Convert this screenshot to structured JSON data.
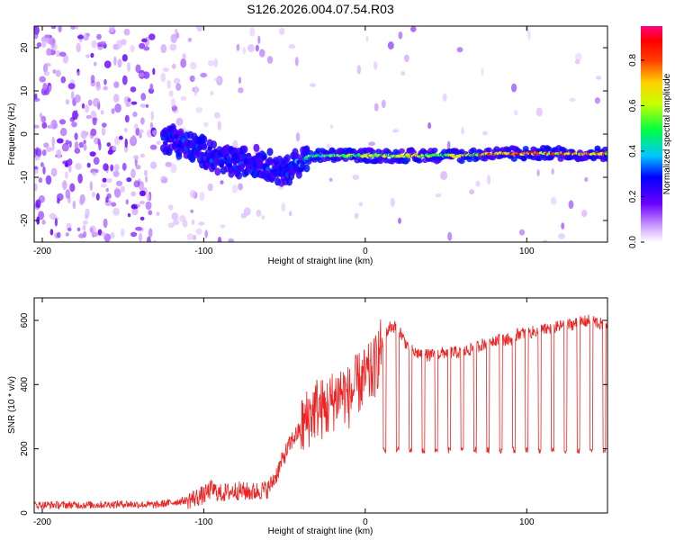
{
  "title": "S126.2026.004.07.54.R03",
  "chart_data": [
    {
      "type": "heatmap",
      "xlabel": "Height of straight line (km)",
      "ylabel": "Frequency (Hz)",
      "xlim": [
        -205,
        150
      ],
      "ylim": [
        -25,
        25
      ],
      "x_ticks": [
        -200,
        -100,
        0,
        100
      ],
      "y_ticks": [
        20,
        10,
        0,
        -10,
        -20
      ],
      "x_tick_labels": [
        "-200",
        "-100",
        "0",
        "100"
      ],
      "y_tick_labels": [
        "20",
        "10",
        "0",
        "-10",
        "-20"
      ],
      "colorbar": {
        "label": "Normalized spectral amplitude",
        "range": [
          0.0,
          0.95
        ],
        "ticks": [
          0.0,
          0.2,
          0.4,
          0.6,
          0.8
        ],
        "tick_labels": [
          "0.0",
          "0.2",
          "0.4",
          "0.6",
          "0.8"
        ]
      },
      "ridge": {
        "x": [
          -120,
          -110,
          -100,
          -90,
          -80,
          -70,
          -60,
          -50,
          -40,
          -30,
          -20,
          -10,
          0,
          20,
          40,
          60,
          80,
          100,
          120,
          150
        ],
        "frequency": [
          -1,
          -3,
          -4,
          -6,
          -7,
          -6,
          -7,
          -9,
          -6,
          -5,
          -5,
          -5,
          -5,
          -5,
          -5,
          -5,
          -4.5,
          -4.5,
          -4.5,
          -4.5
        ],
        "amplitude": [
          0.3,
          0.35,
          0.3,
          0.3,
          0.3,
          0.3,
          0.3,
          0.28,
          0.4,
          0.5,
          0.6,
          0.6,
          0.6,
          0.65,
          0.7,
          0.7,
          0.8,
          0.85,
          0.8,
          0.8
        ]
      }
    },
    {
      "type": "line",
      "xlabel": "Height of straight line (km)",
      "ylabel": "SNR (10 * v/v)",
      "xlim": [
        -205,
        150
      ],
      "ylim": [
        0,
        670
      ],
      "x_ticks": [
        -200,
        -100,
        0,
        100
      ],
      "y_ticks": [
        0,
        200,
        400,
        600
      ],
      "x_tick_labels": [
        "-200",
        "-100",
        "0",
        "100"
      ],
      "y_tick_labels": [
        "0",
        "200",
        "400",
        "600"
      ],
      "color": "#ee2222",
      "series": [
        {
          "name": "SNR",
          "x": [
            -205,
            -190,
            -170,
            -150,
            -130,
            -110,
            -100,
            -95,
            -90,
            -80,
            -70,
            -60,
            -55,
            -50,
            -45,
            -40,
            -35,
            -30,
            -25,
            -20,
            -15,
            -10,
            -5,
            0,
            5,
            10,
            15,
            20,
            25,
            30,
            40,
            50,
            60,
            65,
            70,
            80,
            90,
            95,
            100,
            110,
            120,
            130,
            140,
            150
          ],
          "y": [
            25,
            25,
            25,
            28,
            25,
            40,
            55,
            75,
            60,
            70,
            65,
            75,
            120,
            180,
            230,
            260,
            300,
            330,
            320,
            350,
            380,
            360,
            400,
            420,
            440,
            520,
            580,
            580,
            530,
            500,
            490,
            500,
            500,
            510,
            520,
            540,
            540,
            560,
            560,
            570,
            580,
            590,
            600,
            580
          ]
        }
      ],
      "dropouts": {
        "x": [
          12,
          20,
          28,
          36,
          44,
          52,
          60,
          68,
          76,
          84,
          92,
          100,
          108,
          116,
          124,
          132,
          140,
          148
        ],
        "floor": 195
      }
    }
  ]
}
